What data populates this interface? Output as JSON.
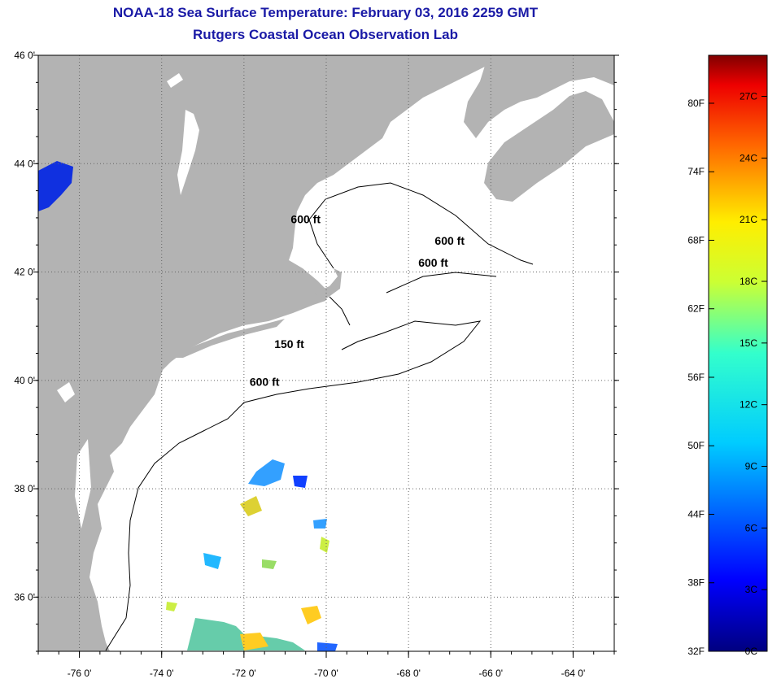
{
  "header": {
    "title": "NOAA-18 Sea Surface Temperature:  February 03, 2016 2259 GMT",
    "subtitle": "Rutgers Coastal Ocean Observation Lab"
  },
  "map": {
    "lat_range": [
      35,
      46
    ],
    "lon_range": [
      -77,
      -63
    ],
    "lat_ticks": [
      {
        "value": 46,
        "label": "46 0'"
      },
      {
        "value": 44,
        "label": "44 0'"
      },
      {
        "value": 42,
        "label": "42 0'"
      },
      {
        "value": 40,
        "label": "40 0'"
      },
      {
        "value": 38,
        "label": "38 0'"
      },
      {
        "value": 36,
        "label": "36 0'"
      }
    ],
    "lon_ticks": [
      {
        "value": -76,
        "label": "-76 0'"
      },
      {
        "value": -74,
        "label": "-74 0'"
      },
      {
        "value": -72,
        "label": "-72 0'"
      },
      {
        "value": -70,
        "label": "-70 0'"
      },
      {
        "value": -68,
        "label": "-68 0'"
      },
      {
        "value": -66,
        "label": "-66 0'"
      },
      {
        "value": -64,
        "label": "-64 0'"
      }
    ],
    "depth_labels": [
      {
        "text": "600 ft",
        "lon": -70.5,
        "lat": 42.9
      },
      {
        "text": "600 ft",
        "lon": -67.0,
        "lat": 42.5
      },
      {
        "text": "600 ft",
        "lon": -67.4,
        "lat": 42.1
      },
      {
        "text": "150 ft",
        "lon": -70.9,
        "lat": 40.6
      },
      {
        "text": "600 ft",
        "lon": -71.5,
        "lat": 39.9
      }
    ],
    "colors": {
      "land": "#b3b3b3",
      "ocean": "#ffffff",
      "grid": "#666666"
    }
  },
  "colorbar": {
    "range_c": [
      0,
      29
    ],
    "fahrenheit_ticks": [
      "32F",
      "38F",
      "44F",
      "50F",
      "56F",
      "62F",
      "68F",
      "74F",
      "80F"
    ],
    "celsius_ticks": [
      "0C",
      "3C",
      "6C",
      "9C",
      "12C",
      "15C",
      "18C",
      "21C",
      "24C",
      "27C"
    ]
  }
}
